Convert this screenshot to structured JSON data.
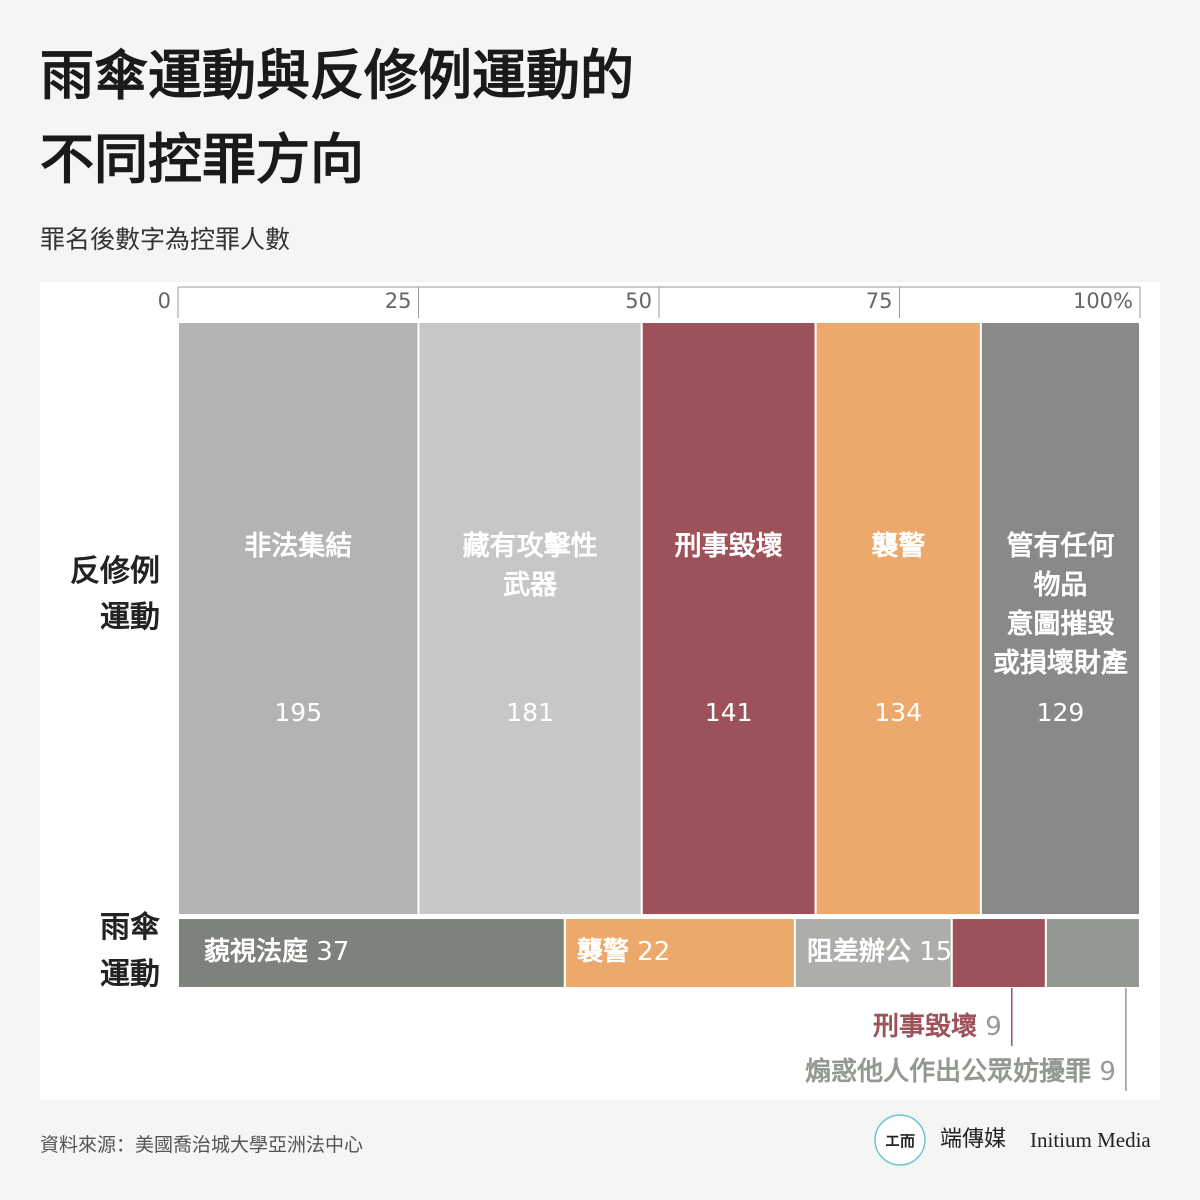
{
  "chart_data": {
    "type": "mosaic",
    "title": "雨傘運動與反修例運動的\n不同控罪方向",
    "subtitle": "罪名後數字為控罪人數",
    "xlim": [
      0,
      100
    ],
    "xticks": [
      0,
      25,
      50,
      75,
      {
        "value": 100,
        "label": "100%"
      }
    ],
    "rows": [
      {
        "name": "反修例\n運動",
        "categories": [
          "非法集結",
          "藏有攻擊性\n武器",
          "刑事毀壞",
          "襲警",
          "管有任何\n物品\n意圖摧毀\n或損壞財產"
        ],
        "values": [
          195,
          181,
          141,
          134,
          129
        ],
        "colors": [
          "#b3b3b3",
          "#c8c7c5",
          "#9d525a",
          "#eca96b",
          "#898989"
        ]
      },
      {
        "name": "雨傘\n運動",
        "categories": [
          "藐視法庭",
          "襲警",
          "阻差辦公",
          "刑事毀壞",
          "煽惑他人作出公眾妨擾罪"
        ],
        "values": [
          37,
          22,
          15,
          9,
          9
        ],
        "colors": [
          "#7d827b",
          "#eca96b",
          "#acaeaa",
          "#9d525a",
          "#939890"
        ]
      }
    ],
    "source": "資料來源：美國喬治城大學亞洲法中心",
    "brand": "端傳媒",
    "brand_en": "Initium Media"
  }
}
